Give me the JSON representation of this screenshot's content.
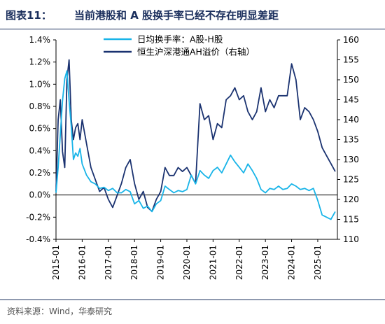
{
  "header": {
    "figure_number": "图表11：",
    "title": "当前港股和 A 股换手率已经不存在明显差距"
  },
  "footer": {
    "source": "资料来源：Wind，华泰研究"
  },
  "colors": {
    "turnover": "#18b4e8",
    "ah_premium": "#1a3270",
    "rule": "#1a2e5c"
  },
  "chart_data": {
    "type": "line",
    "title": "",
    "x_axis": {
      "type": "date",
      "ticks": [
        "2015-01",
        "2016-01",
        "2017-01",
        "2018-01",
        "2019-01",
        "2020-01",
        "2021-01",
        "2022-01",
        "2023-01",
        "2024-01",
        "2025-01"
      ],
      "range": [
        "2015-01",
        "2025-10"
      ]
    },
    "y_left": {
      "min": -0.4,
      "max": 1.4,
      "step": 0.2,
      "tick_labels": [
        "-0.4%",
        "-0.2%",
        "0.0%",
        "0.2%",
        "0.4%",
        "0.6%",
        "0.8%",
        "1.0%",
        "1.2%",
        "1.4%"
      ]
    },
    "y_right": {
      "min": 110,
      "max": 160,
      "step": 5,
      "tick_labels": [
        "110",
        "115",
        "120",
        "125",
        "130",
        "135",
        "140",
        "145",
        "150",
        "155",
        "160"
      ]
    },
    "legend_position": "top-center",
    "grid": false,
    "series": [
      {
        "name": "日均换手率：A股-H股",
        "axis": "left",
        "points": [
          [
            "2015-01-01",
            0.02
          ],
          [
            "2015-02-01",
            0.25
          ],
          [
            "2015-03-01",
            0.55
          ],
          [
            "2015-04-01",
            0.85
          ],
          [
            "2015-05-01",
            1.05
          ],
          [
            "2015-06-01",
            1.12
          ],
          [
            "2015-07-01",
            0.85
          ],
          [
            "2015-08-01",
            0.62
          ],
          [
            "2015-09-01",
            0.32
          ],
          [
            "2015-10-01",
            0.38
          ],
          [
            "2015-11-01",
            0.35
          ],
          [
            "2015-12-01",
            0.42
          ],
          [
            "2016-01-01",
            0.28
          ],
          [
            "2016-03-01",
            0.18
          ],
          [
            "2016-05-01",
            0.12
          ],
          [
            "2016-07-01",
            0.1
          ],
          [
            "2016-09-01",
            0.06
          ],
          [
            "2016-11-01",
            0.07
          ],
          [
            "2017-01-01",
            0.04
          ],
          [
            "2017-03-01",
            0.06
          ],
          [
            "2017-05-01",
            0.02
          ],
          [
            "2017-07-01",
            0.02
          ],
          [
            "2017-09-01",
            0.05
          ],
          [
            "2017-11-01",
            0.03
          ],
          [
            "2018-01-01",
            -0.08
          ],
          [
            "2018-03-01",
            -0.05
          ],
          [
            "2018-05-01",
            -0.12
          ],
          [
            "2018-07-01",
            -0.1
          ],
          [
            "2018-09-01",
            -0.15
          ],
          [
            "2018-11-01",
            -0.08
          ],
          [
            "2019-01-01",
            -0.05
          ],
          [
            "2019-03-01",
            0.08
          ],
          [
            "2019-05-01",
            0.05
          ],
          [
            "2019-07-01",
            0.02
          ],
          [
            "2019-09-01",
            0.04
          ],
          [
            "2019-11-01",
            0.03
          ],
          [
            "2020-01-01",
            0.05
          ],
          [
            "2020-03-01",
            0.18
          ],
          [
            "2020-05-01",
            0.1
          ],
          [
            "2020-07-01",
            0.22
          ],
          [
            "2020-09-01",
            0.18
          ],
          [
            "2020-11-01",
            0.15
          ],
          [
            "2021-01-01",
            0.22
          ],
          [
            "2021-03-01",
            0.25
          ],
          [
            "2021-05-01",
            0.2
          ],
          [
            "2021-07-01",
            0.28
          ],
          [
            "2021-09-01",
            0.36
          ],
          [
            "2021-11-01",
            0.3
          ],
          [
            "2022-01-01",
            0.25
          ],
          [
            "2022-03-01",
            0.2
          ],
          [
            "2022-05-01",
            0.28
          ],
          [
            "2022-07-01",
            0.22
          ],
          [
            "2022-09-01",
            0.15
          ],
          [
            "2022-11-01",
            0.05
          ],
          [
            "2023-01-01",
            0.02
          ],
          [
            "2023-03-01",
            0.06
          ],
          [
            "2023-05-01",
            0.05
          ],
          [
            "2023-07-01",
            0.08
          ],
          [
            "2023-09-01",
            0.05
          ],
          [
            "2023-11-01",
            0.06
          ],
          [
            "2024-01-01",
            0.1
          ],
          [
            "2024-03-01",
            0.08
          ],
          [
            "2024-05-01",
            0.05
          ],
          [
            "2024-07-01",
            0.06
          ],
          [
            "2024-09-01",
            0.04
          ],
          [
            "2024-11-01",
            0.06
          ],
          [
            "2025-01-01",
            -0.05
          ],
          [
            "2025-03-01",
            -0.18
          ],
          [
            "2025-05-01",
            -0.2
          ],
          [
            "2025-07-01",
            -0.22
          ],
          [
            "2025-09-01",
            -0.15
          ]
        ]
      },
      {
        "name": "恒生沪深港通AH溢价（右轴）",
        "axis": "right",
        "points": [
          [
            "2015-01-01",
            122
          ],
          [
            "2015-02-01",
            140
          ],
          [
            "2015-03-01",
            145
          ],
          [
            "2015-04-01",
            132
          ],
          [
            "2015-05-01",
            128
          ],
          [
            "2015-06-01",
            150
          ],
          [
            "2015-07-01",
            155
          ],
          [
            "2015-08-01",
            140
          ],
          [
            "2015-09-01",
            135
          ],
          [
            "2015-10-01",
            138
          ],
          [
            "2015-11-01",
            139
          ],
          [
            "2015-12-01",
            135
          ],
          [
            "2016-01-01",
            140
          ],
          [
            "2016-03-01",
            134
          ],
          [
            "2016-05-01",
            128
          ],
          [
            "2016-07-01",
            125
          ],
          [
            "2016-09-01",
            122
          ],
          [
            "2016-11-01",
            123
          ],
          [
            "2017-01-01",
            120
          ],
          [
            "2017-03-01",
            118
          ],
          [
            "2017-05-01",
            121
          ],
          [
            "2017-07-01",
            124
          ],
          [
            "2017-09-01",
            128
          ],
          [
            "2017-11-01",
            130
          ],
          [
            "2018-01-01",
            124
          ],
          [
            "2018-03-01",
            120
          ],
          [
            "2018-05-01",
            122
          ],
          [
            "2018-07-01",
            118
          ],
          [
            "2018-09-01",
            117
          ],
          [
            "2018-11-01",
            120
          ],
          [
            "2019-01-01",
            122
          ],
          [
            "2019-03-01",
            128
          ],
          [
            "2019-05-01",
            126
          ],
          [
            "2019-07-01",
            126
          ],
          [
            "2019-09-01",
            128
          ],
          [
            "2019-11-01",
            127
          ],
          [
            "2020-01-01",
            128
          ],
          [
            "2020-03-01",
            126
          ],
          [
            "2020-05-01",
            124
          ],
          [
            "2020-07-01",
            144
          ],
          [
            "2020-09-01",
            140
          ],
          [
            "2020-11-01",
            141
          ],
          [
            "2021-01-01",
            135
          ],
          [
            "2021-03-01",
            139
          ],
          [
            "2021-05-01",
            138
          ],
          [
            "2021-07-01",
            145
          ],
          [
            "2021-09-01",
            146
          ],
          [
            "2021-11-01",
            148
          ],
          [
            "2022-01-01",
            145
          ],
          [
            "2022-03-01",
            146
          ],
          [
            "2022-05-01",
            142
          ],
          [
            "2022-07-01",
            140
          ],
          [
            "2022-09-01",
            142
          ],
          [
            "2022-11-01",
            148
          ],
          [
            "2023-01-01",
            142
          ],
          [
            "2023-03-01",
            145
          ],
          [
            "2023-05-01",
            143
          ],
          [
            "2023-07-01",
            146
          ],
          [
            "2023-09-01",
            146
          ],
          [
            "2023-11-01",
            146
          ],
          [
            "2024-01-01",
            154
          ],
          [
            "2024-03-01",
            150
          ],
          [
            "2024-05-01",
            140
          ],
          [
            "2024-07-01",
            143
          ],
          [
            "2024-09-01",
            142
          ],
          [
            "2024-11-01",
            140
          ],
          [
            "2025-01-01",
            137
          ],
          [
            "2025-03-01",
            133
          ],
          [
            "2025-05-01",
            131
          ],
          [
            "2025-07-01",
            129
          ],
          [
            "2025-09-01",
            127
          ]
        ]
      }
    ]
  }
}
